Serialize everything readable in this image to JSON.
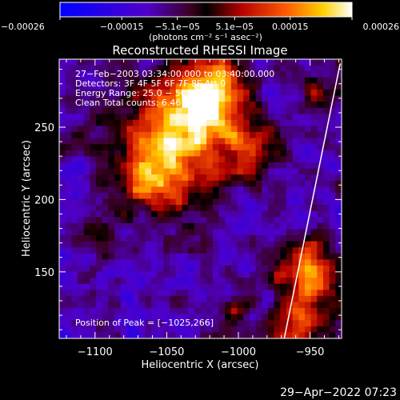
{
  "chart_data": {
    "type": "heatmap",
    "title": "Reconstructed RHESSI Image",
    "xlabel": "Heliocentric X (arcsec)",
    "ylabel": "Heliocentric Y (arcsec)",
    "xlim": [
      -1125,
      -928
    ],
    "ylim": [
      104,
      297
    ],
    "x_ticks": [
      -1100,
      -1050,
      -1000,
      -950
    ],
    "x_tick_labels": [
      "−1100",
      "−1050",
      "−1000",
      "−950"
    ],
    "y_ticks": [
      150,
      200,
      250
    ],
    "y_tick_labels": [
      "150",
      "200",
      "250"
    ],
    "colorbar": {
      "range": [
        -0.00026,
        0.00026
      ],
      "ticks": [
        -0.00026,
        -0.00015,
        -5.1e-05,
        5.1e-05,
        0.00015,
        0.00026
      ],
      "tick_labels": [
        "−0.00026",
        "−0.00015",
        "−5.1e−05",
        "5.1e−05",
        "0.00015",
        "0.00026"
      ],
      "label": "(photons cm⁻² s⁻¹ asec⁻²)",
      "colormap": [
        "#0000ff",
        "#5000c8",
        "#3a0020",
        "#000000",
        "#b40000",
        "#ff6000",
        "#ffd000",
        "#ffffff"
      ]
    },
    "info_lines": [
      "27−Feb−2003 03:34:00.000 to 03:40:00.000",
      "Detectors: 3F 4F 5F 6F 7F 8F Att 0",
      "Energy Range: 25.0 − 50.0 keV",
      "Clean     Total counts: 6.46E+05"
    ],
    "peak_label": "Position of Peak = [−1025,266]",
    "limb_line": [
      [
        -968,
        104
      ],
      [
        -929,
        294
      ]
    ],
    "grid": false
  },
  "footer": {
    "timestamp": "29−Apr−2022 07:23"
  }
}
